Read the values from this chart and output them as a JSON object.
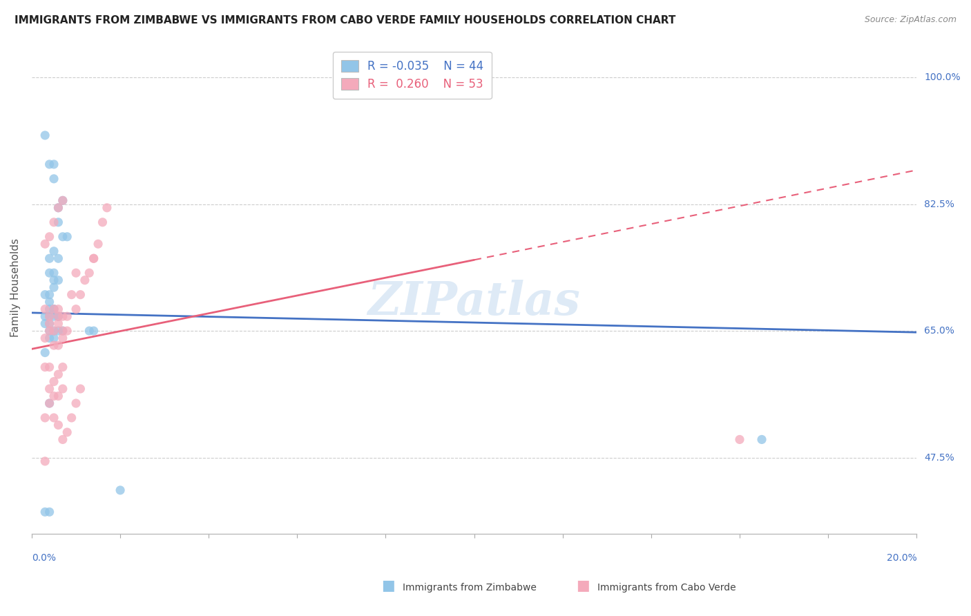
{
  "title": "IMMIGRANTS FROM ZIMBABWE VS IMMIGRANTS FROM CABO VERDE FAMILY HOUSEHOLDS CORRELATION CHART",
  "source": "Source: ZipAtlas.com",
  "ylabel": "Family Households",
  "yticks": [
    "47.5%",
    "65.0%",
    "82.5%",
    "100.0%"
  ],
  "ytick_vals": [
    0.475,
    0.65,
    0.825,
    1.0
  ],
  "xlim": [
    0.0,
    0.2
  ],
  "ylim": [
    0.37,
    1.05
  ],
  "legend_r_zimbabwe": "-0.035",
  "legend_n_zimbabwe": "44",
  "legend_r_caboverde": "0.260",
  "legend_n_caboverde": "53",
  "color_zimbabwe": "#92C5E8",
  "color_caboverde": "#F4AABB",
  "color_zimbabwe_line": "#4472C4",
  "color_caboverde_line": "#E8607A",
  "watermark": "ZIPatlas",
  "zimbabwe_x": [
    0.003,
    0.004,
    0.005,
    0.005,
    0.006,
    0.006,
    0.007,
    0.007,
    0.008,
    0.005,
    0.004,
    0.006,
    0.004,
    0.005,
    0.005,
    0.006,
    0.005,
    0.004,
    0.003,
    0.004,
    0.005,
    0.004,
    0.005,
    0.006,
    0.004,
    0.003,
    0.005,
    0.006,
    0.004,
    0.003,
    0.004,
    0.005,
    0.006,
    0.007,
    0.005,
    0.004,
    0.013,
    0.014,
    0.003,
    0.004,
    0.02,
    0.004,
    0.165,
    0.003
  ],
  "zimbabwe_y": [
    0.92,
    0.88,
    0.88,
    0.86,
    0.82,
    0.8,
    0.78,
    0.83,
    0.78,
    0.76,
    0.75,
    0.75,
    0.73,
    0.73,
    0.72,
    0.72,
    0.71,
    0.7,
    0.7,
    0.69,
    0.68,
    0.68,
    0.68,
    0.67,
    0.67,
    0.67,
    0.67,
    0.67,
    0.66,
    0.66,
    0.65,
    0.65,
    0.65,
    0.65,
    0.64,
    0.64,
    0.65,
    0.65,
    0.62,
    0.55,
    0.43,
    0.4,
    0.5,
    0.4
  ],
  "caboverde_x": [
    0.003,
    0.003,
    0.004,
    0.004,
    0.004,
    0.005,
    0.005,
    0.005,
    0.006,
    0.006,
    0.006,
    0.006,
    0.007,
    0.007,
    0.007,
    0.008,
    0.008,
    0.009,
    0.01,
    0.01,
    0.011,
    0.012,
    0.013,
    0.014,
    0.015,
    0.016,
    0.017,
    0.003,
    0.004,
    0.005,
    0.006,
    0.007,
    0.004,
    0.005,
    0.006,
    0.007,
    0.003,
    0.004,
    0.005,
    0.006,
    0.007,
    0.008,
    0.009,
    0.01,
    0.011,
    0.003,
    0.004,
    0.005,
    0.006,
    0.007,
    0.014,
    0.16,
    0.003
  ],
  "caboverde_y": [
    0.68,
    0.64,
    0.66,
    0.65,
    0.67,
    0.65,
    0.63,
    0.68,
    0.66,
    0.63,
    0.67,
    0.68,
    0.64,
    0.67,
    0.65,
    0.65,
    0.67,
    0.7,
    0.68,
    0.73,
    0.7,
    0.72,
    0.73,
    0.75,
    0.77,
    0.8,
    0.82,
    0.6,
    0.6,
    0.58,
    0.59,
    0.6,
    0.57,
    0.56,
    0.56,
    0.57,
    0.53,
    0.55,
    0.53,
    0.52,
    0.5,
    0.51,
    0.53,
    0.55,
    0.57,
    0.77,
    0.78,
    0.8,
    0.82,
    0.83,
    0.75,
    0.5,
    0.47
  ]
}
